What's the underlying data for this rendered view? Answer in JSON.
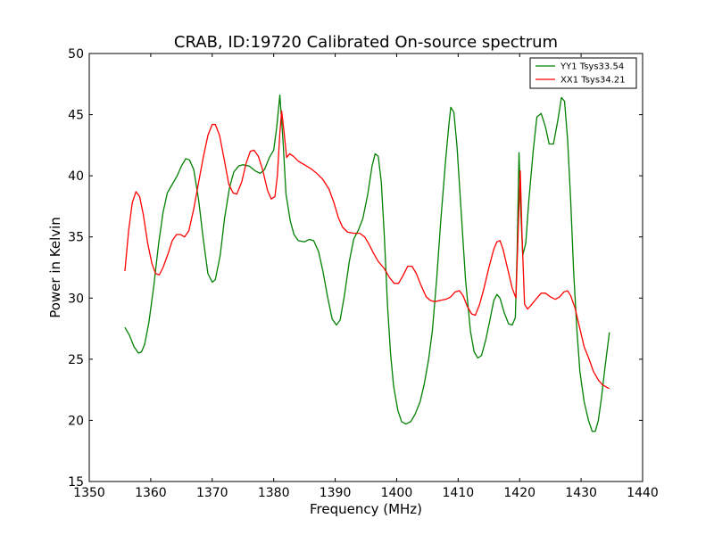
{
  "chart_data": {
    "type": "line",
    "title": "CRAB, ID:19720 Calibrated On-source spectrum",
    "xlabel": "Frequency (MHz)",
    "ylabel": "Power in Kelvin",
    "xlim": [
      1350,
      1440
    ],
    "ylim": [
      15,
      50
    ],
    "xticks": [
      1350,
      1360,
      1370,
      1380,
      1390,
      1400,
      1410,
      1420,
      1430,
      1440
    ],
    "yticks": [
      15,
      20,
      25,
      30,
      35,
      40,
      45,
      50
    ],
    "grid": false,
    "legend_position": "top-right",
    "series": [
      {
        "name": "YY1 Tsys33.54",
        "color": "#008000",
        "points": [
          [
            1355.8,
            27.6
          ],
          [
            1356.5,
            27.0
          ],
          [
            1357.3,
            26.0
          ],
          [
            1358.0,
            25.5
          ],
          [
            1358.5,
            25.6
          ],
          [
            1359.0,
            26.2
          ],
          [
            1359.7,
            28.0
          ],
          [
            1360.5,
            31.0
          ],
          [
            1361.3,
            34.5
          ],
          [
            1362.0,
            37.0
          ],
          [
            1362.7,
            38.6
          ],
          [
            1363.5,
            39.3
          ],
          [
            1364.3,
            40.0
          ],
          [
            1365.0,
            40.8
          ],
          [
            1365.7,
            41.4
          ],
          [
            1366.3,
            41.3
          ],
          [
            1367.0,
            40.5
          ],
          [
            1367.8,
            38.0
          ],
          [
            1368.5,
            35.0
          ],
          [
            1369.3,
            32.0
          ],
          [
            1370.0,
            31.3
          ],
          [
            1370.5,
            31.5
          ],
          [
            1371.3,
            33.5
          ],
          [
            1372.0,
            36.5
          ],
          [
            1372.8,
            39.0
          ],
          [
            1373.5,
            40.3
          ],
          [
            1374.3,
            40.8
          ],
          [
            1375.0,
            40.9
          ],
          [
            1376.0,
            40.8
          ],
          [
            1377.0,
            40.4
          ],
          [
            1377.8,
            40.2
          ],
          [
            1378.5,
            40.5
          ],
          [
            1379.3,
            41.5
          ],
          [
            1380.0,
            42.1
          ],
          [
            1380.5,
            44.0
          ],
          [
            1381.0,
            46.6
          ],
          [
            1381.5,
            43.0
          ],
          [
            1382.0,
            38.5
          ],
          [
            1382.7,
            36.3
          ],
          [
            1383.3,
            35.2
          ],
          [
            1384.0,
            34.7
          ],
          [
            1385.0,
            34.6
          ],
          [
            1385.8,
            34.8
          ],
          [
            1386.5,
            34.7
          ],
          [
            1387.3,
            33.8
          ],
          [
            1388.0,
            32.2
          ],
          [
            1388.8,
            30.0
          ],
          [
            1389.5,
            28.3
          ],
          [
            1390.2,
            27.8
          ],
          [
            1390.8,
            28.2
          ],
          [
            1391.5,
            30.2
          ],
          [
            1392.3,
            33.0
          ],
          [
            1393.0,
            34.8
          ],
          [
            1393.8,
            35.6
          ],
          [
            1394.5,
            36.5
          ],
          [
            1395.3,
            38.5
          ],
          [
            1396.0,
            40.8
          ],
          [
            1396.5,
            41.8
          ],
          [
            1397.0,
            41.6
          ],
          [
            1397.5,
            39.5
          ],
          [
            1398.0,
            35.0
          ],
          [
            1398.5,
            29.5
          ],
          [
            1399.0,
            25.5
          ],
          [
            1399.5,
            22.8
          ],
          [
            1400.2,
            20.8
          ],
          [
            1400.8,
            19.9
          ],
          [
            1401.5,
            19.7
          ],
          [
            1402.3,
            19.9
          ],
          [
            1403.0,
            20.5
          ],
          [
            1403.8,
            21.5
          ],
          [
            1404.5,
            23.0
          ],
          [
            1405.2,
            25.0
          ],
          [
            1405.8,
            27.3
          ],
          [
            1406.5,
            31.5
          ],
          [
            1407.2,
            36.5
          ],
          [
            1408.0,
            41.5
          ],
          [
            1408.5,
            44.2
          ],
          [
            1408.8,
            45.6
          ],
          [
            1409.3,
            45.2
          ],
          [
            1409.8,
            42.5
          ],
          [
            1410.5,
            37.0
          ],
          [
            1411.2,
            31.5
          ],
          [
            1412.0,
            27.3
          ],
          [
            1412.6,
            25.6
          ],
          [
            1413.2,
            25.1
          ],
          [
            1413.8,
            25.3
          ],
          [
            1414.5,
            26.6
          ],
          [
            1415.2,
            28.3
          ],
          [
            1415.8,
            29.8
          ],
          [
            1416.3,
            30.3
          ],
          [
            1416.8,
            30.0
          ],
          [
            1417.5,
            28.8
          ],
          [
            1418.2,
            27.9
          ],
          [
            1418.8,
            27.8
          ],
          [
            1419.3,
            28.4
          ],
          [
            1419.6,
            34.0
          ],
          [
            1419.9,
            41.9
          ],
          [
            1420.2,
            37.0
          ],
          [
            1420.5,
            33.5
          ],
          [
            1421.0,
            34.5
          ],
          [
            1421.5,
            38.0
          ],
          [
            1422.2,
            42.0
          ],
          [
            1422.8,
            44.8
          ],
          [
            1423.5,
            45.1
          ],
          [
            1424.2,
            44.0
          ],
          [
            1424.8,
            42.6
          ],
          [
            1425.5,
            42.6
          ],
          [
            1426.2,
            44.5
          ],
          [
            1426.8,
            46.4
          ],
          [
            1427.3,
            46.1
          ],
          [
            1427.8,
            43.0
          ],
          [
            1428.3,
            38.0
          ],
          [
            1428.8,
            32.0
          ],
          [
            1429.3,
            27.5
          ],
          [
            1429.8,
            24.0
          ],
          [
            1430.5,
            21.5
          ],
          [
            1431.2,
            20.0
          ],
          [
            1431.8,
            19.1
          ],
          [
            1432.3,
            19.1
          ],
          [
            1432.8,
            20.0
          ],
          [
            1433.3,
            21.8
          ],
          [
            1433.8,
            24.0
          ],
          [
            1434.3,
            26.0
          ],
          [
            1434.6,
            27.2
          ]
        ]
      },
      {
        "name": "XX1 Tsys34.21",
        "color": "#ff0000",
        "points": [
          [
            1355.8,
            32.2
          ],
          [
            1356.4,
            35.5
          ],
          [
            1357.0,
            37.8
          ],
          [
            1357.6,
            38.7
          ],
          [
            1358.2,
            38.3
          ],
          [
            1358.8,
            36.8
          ],
          [
            1359.5,
            34.5
          ],
          [
            1360.2,
            32.8
          ],
          [
            1360.8,
            32.0
          ],
          [
            1361.4,
            31.9
          ],
          [
            1362.0,
            32.5
          ],
          [
            1362.8,
            33.6
          ],
          [
            1363.5,
            34.7
          ],
          [
            1364.2,
            35.2
          ],
          [
            1364.8,
            35.2
          ],
          [
            1365.5,
            35.0
          ],
          [
            1366.2,
            35.5
          ],
          [
            1367.0,
            37.3
          ],
          [
            1367.8,
            39.5
          ],
          [
            1368.5,
            41.4
          ],
          [
            1369.3,
            43.3
          ],
          [
            1370.0,
            44.2
          ],
          [
            1370.5,
            44.2
          ],
          [
            1371.2,
            43.3
          ],
          [
            1372.0,
            41.2
          ],
          [
            1372.7,
            39.3
          ],
          [
            1373.4,
            38.6
          ],
          [
            1374.0,
            38.5
          ],
          [
            1374.8,
            39.5
          ],
          [
            1375.5,
            41.0
          ],
          [
            1376.2,
            42.0
          ],
          [
            1376.8,
            42.1
          ],
          [
            1377.5,
            41.6
          ],
          [
            1378.2,
            40.5
          ],
          [
            1379.0,
            38.8
          ],
          [
            1379.6,
            38.1
          ],
          [
            1380.2,
            38.3
          ],
          [
            1380.6,
            40.0
          ],
          [
            1381.0,
            43.5
          ],
          [
            1381.3,
            45.3
          ],
          [
            1381.7,
            43.5
          ],
          [
            1382.1,
            41.5
          ],
          [
            1382.6,
            41.8
          ],
          [
            1383.2,
            41.6
          ],
          [
            1384.0,
            41.2
          ],
          [
            1385.0,
            40.9
          ],
          [
            1386.0,
            40.6
          ],
          [
            1387.0,
            40.2
          ],
          [
            1388.0,
            39.7
          ],
          [
            1389.0,
            38.9
          ],
          [
            1389.8,
            37.8
          ],
          [
            1390.5,
            36.6
          ],
          [
            1391.2,
            35.8
          ],
          [
            1392.0,
            35.4
          ],
          [
            1393.0,
            35.3
          ],
          [
            1394.0,
            35.3
          ],
          [
            1394.8,
            35.0
          ],
          [
            1395.5,
            34.4
          ],
          [
            1396.2,
            33.7
          ],
          [
            1397.0,
            33.0
          ],
          [
            1398.0,
            32.4
          ],
          [
            1398.8,
            31.7
          ],
          [
            1399.6,
            31.2
          ],
          [
            1400.3,
            31.2
          ],
          [
            1401.0,
            31.8
          ],
          [
            1401.8,
            32.6
          ],
          [
            1402.5,
            32.6
          ],
          [
            1403.2,
            32.0
          ],
          [
            1404.0,
            31.0
          ],
          [
            1404.8,
            30.1
          ],
          [
            1405.5,
            29.8
          ],
          [
            1406.2,
            29.7
          ],
          [
            1407.0,
            29.8
          ],
          [
            1408.0,
            29.9
          ],
          [
            1408.8,
            30.1
          ],
          [
            1409.5,
            30.5
          ],
          [
            1410.2,
            30.6
          ],
          [
            1410.8,
            30.2
          ],
          [
            1411.5,
            29.3
          ],
          [
            1412.2,
            28.7
          ],
          [
            1412.8,
            28.6
          ],
          [
            1413.5,
            29.5
          ],
          [
            1414.2,
            30.8
          ],
          [
            1415.0,
            32.5
          ],
          [
            1415.8,
            34.0
          ],
          [
            1416.3,
            34.6
          ],
          [
            1416.8,
            34.7
          ],
          [
            1417.3,
            34.0
          ],
          [
            1418.0,
            32.5
          ],
          [
            1418.8,
            30.8
          ],
          [
            1419.4,
            30.0
          ],
          [
            1419.8,
            36.0
          ],
          [
            1420.1,
            40.4
          ],
          [
            1420.4,
            35.0
          ],
          [
            1420.8,
            29.5
          ],
          [
            1421.3,
            29.1
          ],
          [
            1422.0,
            29.5
          ],
          [
            1422.8,
            30.0
          ],
          [
            1423.5,
            30.4
          ],
          [
            1424.2,
            30.4
          ],
          [
            1425.0,
            30.1
          ],
          [
            1425.8,
            29.9
          ],
          [
            1426.5,
            30.1
          ],
          [
            1427.2,
            30.5
          ],
          [
            1427.8,
            30.6
          ],
          [
            1428.3,
            30.2
          ],
          [
            1429.0,
            29.2
          ],
          [
            1429.8,
            27.5
          ],
          [
            1430.5,
            26.0
          ],
          [
            1431.3,
            25.0
          ],
          [
            1432.0,
            24.0
          ],
          [
            1432.8,
            23.3
          ],
          [
            1433.5,
            22.9
          ],
          [
            1434.2,
            22.7
          ],
          [
            1434.6,
            22.6
          ]
        ]
      }
    ]
  }
}
